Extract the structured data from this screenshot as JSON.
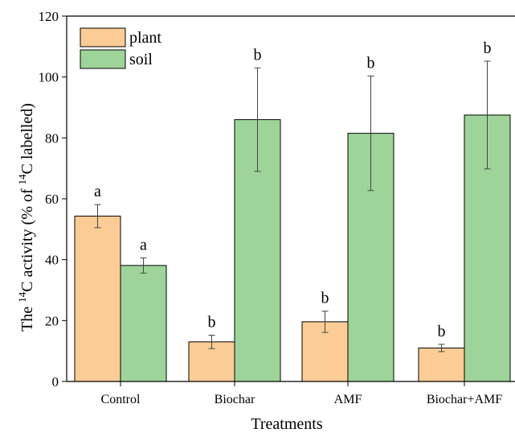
{
  "chart_data": {
    "type": "bar",
    "xlabel": "Treatments",
    "ylabel": {
      "prefix": "The ",
      "sup1": "14",
      "mid": "C activity (% of ",
      "sup2": "14",
      "suffix": "C labelled)"
    },
    "ylim": [
      0,
      120
    ],
    "yticks": [
      0,
      20,
      40,
      60,
      80,
      100,
      120
    ],
    "categories": [
      "Control",
      "Biochar",
      "AMF",
      "Biochar+AMF"
    ],
    "legend_position": "top-left",
    "grid": false,
    "series": [
      {
        "name": "plant",
        "color": "#FCCC96",
        "values": [
          54.3,
          13.0,
          19.6,
          11.0
        ],
        "errors": [
          3.8,
          2.2,
          3.5,
          1.2
        ],
        "labels": [
          "a",
          "b",
          "b",
          "b"
        ]
      },
      {
        "name": "soil",
        "color": "#9ED49A",
        "values": [
          38.1,
          86.0,
          81.5,
          87.5
        ],
        "errors": [
          2.5,
          17.0,
          18.8,
          17.7
        ],
        "labels": [
          "a",
          "b",
          "b",
          "b"
        ]
      }
    ]
  }
}
